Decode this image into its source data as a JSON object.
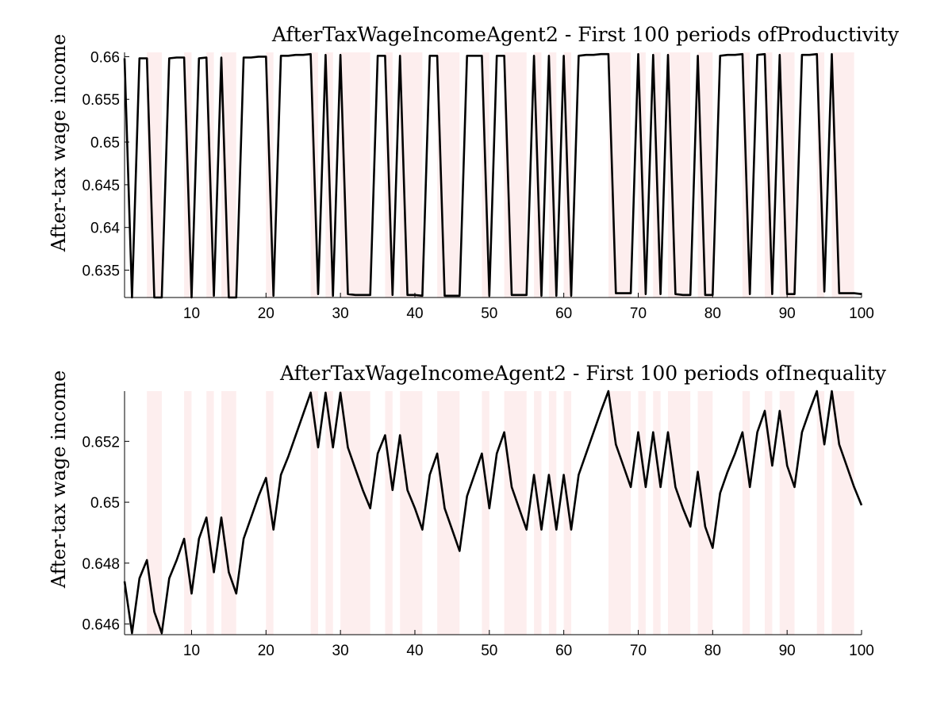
{
  "chart_data": [
    {
      "type": "line",
      "title": "AfterTaxWageIncomeAgent2 - First 100 periods ofProductivity",
      "xlabel": "",
      "ylabel": "After-tax wage income",
      "xlim": [
        1,
        100
      ],
      "ylim": [
        0.6318,
        0.6605
      ],
      "x_ticks": [
        10,
        20,
        30,
        40,
        50,
        60,
        70,
        80,
        90,
        100
      ],
      "y_ticks": [
        0.635,
        0.64,
        0.645,
        0.65,
        0.655,
        0.66
      ],
      "y_tick_labels": [
        "0.635",
        "0.64",
        "0.645",
        "0.65",
        "0.655",
        "0.66"
      ],
      "grid": false,
      "shaded_periods": [
        [
          4,
          6
        ],
        [
          9,
          10
        ],
        [
          12,
          13
        ],
        [
          14,
          16
        ],
        [
          20,
          21
        ],
        [
          26,
          27
        ],
        [
          28,
          29
        ],
        [
          30,
          34
        ],
        [
          36,
          37
        ],
        [
          38,
          41
        ],
        [
          43,
          46
        ],
        [
          49,
          50
        ],
        [
          52,
          55
        ],
        [
          56,
          57
        ],
        [
          58,
          59
        ],
        [
          60,
          61
        ],
        [
          66,
          69
        ],
        [
          70,
          71
        ],
        [
          72,
          73
        ],
        [
          74,
          77
        ],
        [
          78,
          80
        ],
        [
          84,
          85
        ],
        [
          87,
          88
        ],
        [
          89,
          91
        ],
        [
          94,
          95
        ],
        [
          96,
          99
        ]
      ],
      "x": [
        1,
        2,
        3,
        4,
        5,
        6,
        7,
        8,
        9,
        10,
        11,
        12,
        13,
        14,
        15,
        16,
        17,
        18,
        19,
        20,
        21,
        22,
        23,
        24,
        25,
        26,
        27,
        28,
        29,
        30,
        31,
        32,
        33,
        34,
        35,
        36,
        37,
        38,
        39,
        40,
        41,
        42,
        43,
        44,
        45,
        46,
        47,
        48,
        49,
        50,
        51,
        52,
        53,
        54,
        55,
        56,
        57,
        58,
        59,
        60,
        61,
        62,
        63,
        64,
        65,
        66,
        67,
        68,
        69,
        70,
        71,
        72,
        73,
        74,
        75,
        76,
        77,
        78,
        79,
        80,
        81,
        82,
        83,
        84,
        85,
        86,
        87,
        88,
        89,
        90,
        91,
        92,
        93,
        94,
        95,
        96,
        97,
        98,
        99,
        100
      ],
      "series": [
        {
          "values": [
            0.6598,
            0.6318,
            0.6598,
            0.6598,
            0.6318,
            0.6318,
            0.6598,
            0.6599,
            0.6599,
            0.6318,
            0.6598,
            0.6599,
            0.632,
            0.6599,
            0.6318,
            0.6318,
            0.6599,
            0.6599,
            0.66,
            0.66,
            0.632,
            0.6601,
            0.6601,
            0.6602,
            0.6602,
            0.6603,
            0.6322,
            0.6602,
            0.632,
            0.6602,
            0.6322,
            0.6321,
            0.6321,
            0.6321,
            0.6601,
            0.6601,
            0.6321,
            0.6601,
            0.6321,
            0.6321,
            0.632,
            0.6601,
            0.6601,
            0.632,
            0.632,
            0.632,
            0.6601,
            0.6601,
            0.6601,
            0.632,
            0.6601,
            0.6601,
            0.6321,
            0.6321,
            0.6321,
            0.6601,
            0.632,
            0.6601,
            0.632,
            0.6601,
            0.632,
            0.6601,
            0.6602,
            0.6602,
            0.6603,
            0.6603,
            0.6323,
            0.6323,
            0.6323,
            0.6603,
            0.6322,
            0.6602,
            0.6322,
            0.6602,
            0.6322,
            0.6321,
            0.6321,
            0.6601,
            0.6321,
            0.6321,
            0.6601,
            0.6602,
            0.6602,
            0.6603,
            0.6322,
            0.6602,
            0.6603,
            0.6322,
            0.6602,
            0.6322,
            0.6322,
            0.6602,
            0.6602,
            0.6603,
            0.6325,
            0.6603,
            0.6323,
            0.6323,
            0.6323,
            0.6322
          ]
        }
      ]
    },
    {
      "type": "line",
      "title": "AfterTaxWageIncomeAgent2 - First 100 periods ofInequality",
      "xlabel": "",
      "ylabel": "After-tax wage income",
      "xlim": [
        1,
        100
      ],
      "ylim": [
        0.64565,
        0.65365
      ],
      "x_ticks": [
        10,
        20,
        30,
        40,
        50,
        60,
        70,
        80,
        90,
        100
      ],
      "y_ticks": [
        0.646,
        0.648,
        0.65,
        0.652
      ],
      "y_tick_labels": [
        "0.646",
        "0.648",
        "0.65",
        "0.652"
      ],
      "grid": false,
      "shaded_periods": [
        [
          4,
          6
        ],
        [
          9,
          10
        ],
        [
          12,
          13
        ],
        [
          14,
          16
        ],
        [
          20,
          21
        ],
        [
          26,
          27
        ],
        [
          28,
          29
        ],
        [
          30,
          34
        ],
        [
          36,
          37
        ],
        [
          38,
          41
        ],
        [
          43,
          46
        ],
        [
          49,
          50
        ],
        [
          52,
          55
        ],
        [
          56,
          57
        ],
        [
          58,
          59
        ],
        [
          60,
          61
        ],
        [
          66,
          69
        ],
        [
          70,
          71
        ],
        [
          72,
          73
        ],
        [
          74,
          77
        ],
        [
          78,
          80
        ],
        [
          84,
          85
        ],
        [
          87,
          88
        ],
        [
          89,
          91
        ],
        [
          94,
          95
        ],
        [
          96,
          99
        ]
      ],
      "x": [
        1,
        2,
        3,
        4,
        5,
        6,
        7,
        8,
        9,
        10,
        11,
        12,
        13,
        14,
        15,
        16,
        17,
        18,
        19,
        20,
        21,
        22,
        23,
        24,
        25,
        26,
        27,
        28,
        29,
        30,
        31,
        32,
        33,
        34,
        35,
        36,
        37,
        38,
        39,
        40,
        41,
        42,
        43,
        44,
        45,
        46,
        47,
        48,
        49,
        50,
        51,
        52,
        53,
        54,
        55,
        56,
        57,
        58,
        59,
        60,
        61,
        62,
        63,
        64,
        65,
        66,
        67,
        68,
        69,
        70,
        71,
        72,
        73,
        74,
        75,
        76,
        77,
        78,
        79,
        80,
        81,
        82,
        83,
        84,
        85,
        86,
        87,
        88,
        89,
        90,
        91,
        92,
        93,
        94,
        95,
        96,
        97,
        98,
        99,
        100
      ],
      "series": [
        {
          "values": [
            0.6474,
            0.6457,
            0.6475,
            0.6481,
            0.6464,
            0.6457,
            0.6475,
            0.6481,
            0.6488,
            0.647,
            0.6488,
            0.6495,
            0.6477,
            0.6495,
            0.6477,
            0.647,
            0.6488,
            0.6495,
            0.6502,
            0.6508,
            0.6491,
            0.6509,
            0.6515,
            0.6522,
            0.6529,
            0.6536,
            0.6518,
            0.6536,
            0.6518,
            0.6536,
            0.6518,
            0.6511,
            0.6504,
            0.6498,
            0.6516,
            0.6522,
            0.6504,
            0.6522,
            0.6504,
            0.6498,
            0.6491,
            0.6509,
            0.6516,
            0.6498,
            0.6491,
            0.6484,
            0.6502,
            0.6509,
            0.6516,
            0.6498,
            0.6516,
            0.6523,
            0.6505,
            0.6498,
            0.6491,
            0.6509,
            0.6491,
            0.6509,
            0.6491,
            0.6509,
            0.6491,
            0.6509,
            0.6516,
            0.6523,
            0.653,
            0.6537,
            0.6519,
            0.6512,
            0.6505,
            0.6523,
            0.6505,
            0.6523,
            0.6505,
            0.6523,
            0.6505,
            0.6498,
            0.6492,
            0.651,
            0.6492,
            0.6485,
            0.6503,
            0.651,
            0.6516,
            0.6523,
            0.6505,
            0.6523,
            0.653,
            0.6512,
            0.653,
            0.6512,
            0.6505,
            0.6523,
            0.653,
            0.6537,
            0.6519,
            0.6537,
            0.6519,
            0.6512,
            0.6505,
            0.6499
          ]
        }
      ]
    }
  ]
}
